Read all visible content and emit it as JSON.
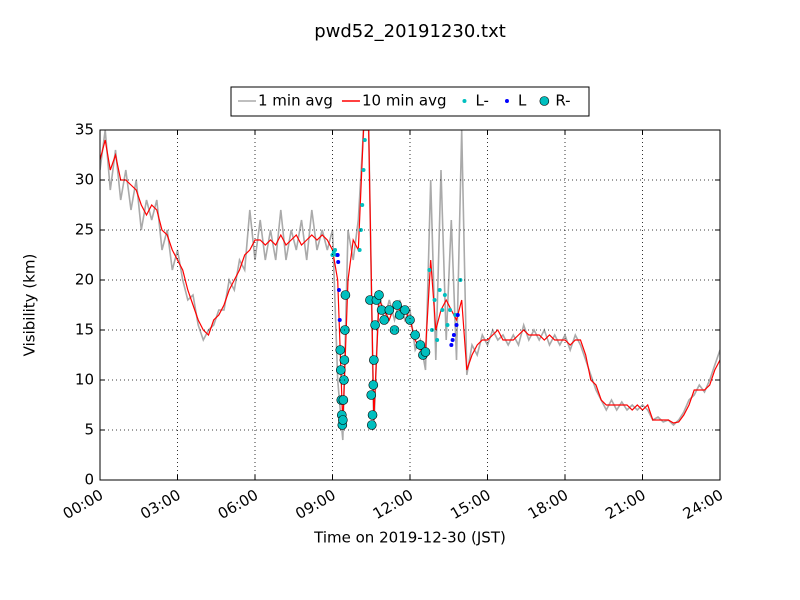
{
  "chart_data": {
    "type": "line",
    "title": "pwd52_20191230.txt",
    "xlabel": "Time on 2019-12-30 (JST)",
    "ylabel": "Visibility (km)",
    "xlim": [
      0,
      24
    ],
    "ylim": [
      0,
      35
    ],
    "xticks": [
      {
        "value": 0,
        "label": "00:00"
      },
      {
        "value": 3,
        "label": "03:00"
      },
      {
        "value": 6,
        "label": "06:00"
      },
      {
        "value": 9,
        "label": "09:00"
      },
      {
        "value": 12,
        "label": "12:00"
      },
      {
        "value": 15,
        "label": "15:00"
      },
      {
        "value": 18,
        "label": "18:00"
      },
      {
        "value": 21,
        "label": "21:00"
      },
      {
        "value": 24,
        "label": "24:00"
      }
    ],
    "yticks": [
      0,
      5,
      10,
      15,
      20,
      25,
      30,
      35
    ],
    "grid": true,
    "legend": "top-center",
    "x": [
      0,
      0.2,
      0.4,
      0.6,
      0.8,
      1,
      1.2,
      1.4,
      1.6,
      1.8,
      2,
      2.2,
      2.4,
      2.6,
      2.8,
      3,
      3.2,
      3.4,
      3.6,
      3.8,
      4,
      4.2,
      4.4,
      4.6,
      4.8,
      5,
      5.2,
      5.4,
      5.6,
      5.8,
      6,
      6.2,
      6.4,
      6.6,
      6.8,
      7,
      7.2,
      7.4,
      7.6,
      7.8,
      8,
      8.2,
      8.4,
      8.6,
      8.8,
      9,
      9.2,
      9.4,
      9.6,
      9.8,
      10,
      10.2,
      10.4,
      10.6,
      10.8,
      11,
      11.2,
      11.4,
      11.6,
      11.8,
      12,
      12.2,
      12.4,
      12.6,
      12.8,
      13,
      13.2,
      13.4,
      13.6,
      13.8,
      14,
      14.2,
      14.4,
      14.6,
      14.8,
      15,
      15.2,
      15.4,
      15.6,
      15.8,
      16,
      16.2,
      16.4,
      16.6,
      16.8,
      17,
      17.2,
      17.4,
      17.6,
      17.8,
      18,
      18.2,
      18.4,
      18.6,
      18.8,
      19,
      19.2,
      19.4,
      19.6,
      19.8,
      20,
      20.2,
      20.4,
      20.6,
      20.8,
      21,
      21.2,
      21.4,
      21.6,
      21.8,
      22,
      22.2,
      22.4,
      22.6,
      22.8,
      23,
      23.2,
      23.4,
      23.6,
      23.8,
      24
    ],
    "series": [
      {
        "name": "1 min avg",
        "color": "#aaaaaa",
        "values": [
          31,
          35,
          29,
          33,
          28,
          31,
          27,
          30,
          25,
          28,
          26,
          28,
          23,
          25,
          21,
          23,
          20,
          18,
          18.5,
          15.5,
          14,
          15,
          15.5,
          17,
          17,
          20,
          19,
          22,
          21,
          27,
          22,
          26,
          22,
          25,
          22,
          27,
          22,
          25,
          23,
          26,
          22,
          27,
          23,
          25,
          23,
          25,
          10,
          4,
          25,
          22,
          26,
          35,
          35,
          5,
          19,
          16,
          18,
          16,
          18,
          16,
          17,
          13,
          14,
          11,
          30,
          12,
          31,
          14,
          26,
          12,
          35,
          10.5,
          13.5,
          12.5,
          14.5,
          13.5,
          15,
          14,
          14.5,
          13.5,
          14.5,
          13.5,
          15.5,
          14,
          15,
          14,
          15,
          13.5,
          14.5,
          13.5,
          14.5,
          13,
          14.5,
          13.5,
          12,
          10.5,
          9,
          8,
          7,
          8,
          7,
          7.8,
          7,
          7.5,
          7,
          7.5,
          7,
          6,
          6.3,
          5.8,
          6,
          5.5,
          6,
          6.8,
          8,
          8.5,
          9.5,
          8.8,
          10,
          11.5,
          13
        ]
      },
      {
        "name": "10 min avg",
        "color": "#ff0000",
        "values": [
          32,
          34,
          31,
          32.5,
          30,
          30,
          29.5,
          29,
          27.5,
          26.5,
          27.5,
          27,
          25,
          24.5,
          23,
          22,
          21,
          19,
          17.5,
          16,
          15,
          14.5,
          16,
          16.5,
          17.5,
          19,
          20,
          21,
          22.5,
          23,
          24,
          24,
          23.5,
          24,
          23.5,
          24.5,
          23.5,
          24,
          24.5,
          23.5,
          24,
          24.5,
          24,
          24.5,
          24,
          23,
          20,
          5.5,
          20,
          24,
          23,
          35,
          35,
          6,
          18,
          17,
          16,
          17.5,
          17,
          17,
          16,
          14,
          13,
          13,
          22,
          15,
          17,
          18,
          17,
          16,
          18,
          11,
          12.5,
          13.5,
          14,
          14,
          14.5,
          15,
          14,
          14,
          14,
          14.5,
          15,
          14.5,
          14.5,
          14.5,
          14,
          14.5,
          14,
          14,
          14,
          13.5,
          14,
          14,
          12.5,
          10,
          9.5,
          8,
          7.5,
          7.5,
          7.5,
          7.5,
          7.5,
          7,
          7.5,
          7,
          7.5,
          6,
          6,
          6,
          6,
          5.7,
          5.8,
          6.5,
          7.5,
          9,
          9,
          9,
          9.5,
          11,
          12
        ]
      },
      {
        "name": "L-",
        "type": "scatter",
        "color": "#00bfbf",
        "x": [
          9,
          9.05,
          9.1,
          9.15,
          10.05,
          10.1,
          10.15,
          10.2,
          10.25,
          12.75,
          12.85,
          12.95,
          13.05,
          13.15,
          13.25,
          13.35,
          13.45,
          13.55,
          13.75,
          13.95
        ],
        "values": [
          22.5,
          22.8,
          23,
          22.5,
          23,
          25,
          27.5,
          31,
          34,
          21,
          15,
          18,
          14,
          19,
          17,
          18.5,
          15.5,
          17,
          16.5,
          20
        ]
      },
      {
        "name": "L",
        "type": "scatter",
        "color": "#0000ff",
        "x": [
          9.2,
          9.22,
          9.25,
          9.28,
          13.6,
          13.65,
          13.7,
          13.8,
          13.85
        ],
        "values": [
          22.5,
          21.8,
          19,
          16,
          13.5,
          14,
          14.5,
          15.5,
          16.5
        ]
      },
      {
        "name": "R-",
        "type": "scatter",
        "color": "#00bfbf",
        "x": [
          9.3,
          9.32,
          9.34,
          9.36,
          9.38,
          9.4,
          9.42,
          9.44,
          9.46,
          9.48,
          9.5,
          10.45,
          10.5,
          10.52,
          10.55,
          10.58,
          10.6,
          10.65,
          10.7,
          10.8,
          10.9,
          11,
          11.2,
          11.4,
          11.5,
          11.6,
          11.8,
          12,
          12.2,
          12.4,
          12.5,
          12.6
        ],
        "values": [
          13,
          11,
          8,
          6.5,
          5.5,
          6,
          8,
          10,
          12,
          15,
          18.5,
          18,
          8.5,
          5.5,
          6.5,
          9.5,
          12,
          15.5,
          18,
          18.5,
          17,
          16,
          17,
          15,
          17.5,
          16.5,
          17,
          16,
          14.5,
          13.5,
          12.5,
          12.8
        ]
      }
    ]
  }
}
